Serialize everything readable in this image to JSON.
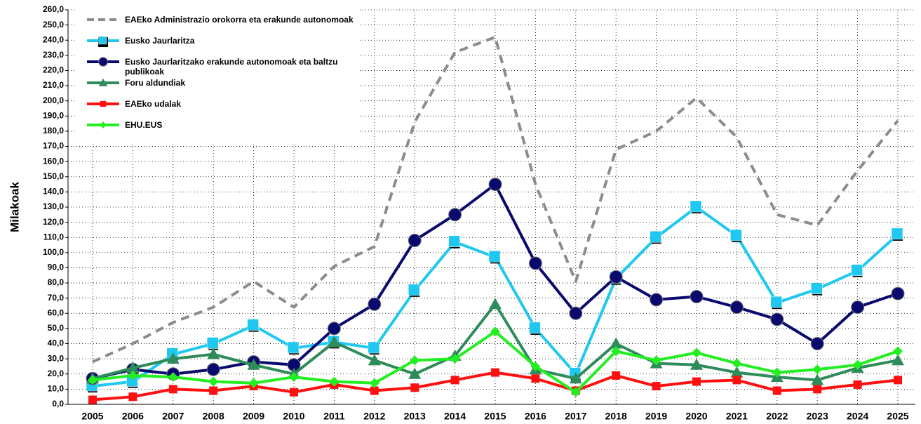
{
  "chart_data": {
    "type": "line",
    "y_label": "Milakoak",
    "categories": [
      "2005",
      "2006",
      "2007",
      "2008",
      "2009",
      "2010",
      "2011",
      "2012",
      "2013",
      "2014",
      "2015",
      "2016",
      "2017",
      "2018",
      "2019",
      "2020",
      "2021",
      "2022",
      "2023",
      "2024",
      "2025"
    ],
    "ylim": [
      0,
      260
    ],
    "yticks": [
      {
        "value": 0,
        "label": "0,0"
      },
      {
        "value": 10,
        "label": "10,0"
      },
      {
        "value": 20,
        "label": "20,0"
      },
      {
        "value": 30,
        "label": "30,0"
      },
      {
        "value": 40,
        "label": "40,0"
      },
      {
        "value": 50,
        "label": "50,0"
      },
      {
        "value": 60,
        "label": "60,0"
      },
      {
        "value": 70,
        "label": "70,0"
      },
      {
        "value": 80,
        "label": "80,0"
      },
      {
        "value": 90,
        "label": "90,0"
      },
      {
        "value": 100,
        "label": "100,0"
      },
      {
        "value": 110,
        "label": "110,0"
      },
      {
        "value": 120,
        "label": "120,0"
      },
      {
        "value": 130,
        "label": "130,0"
      },
      {
        "value": 140,
        "label": "140,0"
      },
      {
        "value": 150,
        "label": "150,0"
      },
      {
        "value": 160,
        "label": "160,0"
      },
      {
        "value": 170,
        "label": "170,0"
      },
      {
        "value": 180,
        "label": "180,0"
      },
      {
        "value": 190,
        "label": "190,0"
      },
      {
        "value": 200,
        "label": "200,0"
      },
      {
        "value": 210,
        "label": "210,0"
      },
      {
        "value": 220,
        "label": "220,0"
      },
      {
        "value": 230,
        "label": "230,0"
      },
      {
        "value": 240,
        "label": "240,0"
      },
      {
        "value": 250,
        "label": "250,0"
      },
      {
        "value": 260,
        "label": "260,0"
      }
    ],
    "grid": true,
    "legend": "upper left",
    "series": [
      {
        "name": "EAEko Administrazio orokorra eta erakunde autonomoak",
        "color": "#8c8c8c",
        "marker": "none",
        "dashed": true,
        "values": [
          28,
          40,
          54,
          64,
          81,
          64,
          91,
          104,
          186,
          232,
          242,
          145,
          81,
          168,
          180,
          202,
          176,
          125,
          118,
          154,
          187
        ]
      },
      {
        "name": "Eusko Jaurlaritza",
        "color": "#1ec8f0",
        "marker": "square",
        "dashed": false,
        "values": [
          12,
          15,
          33,
          40,
          52,
          37,
          41,
          37,
          75,
          107,
          97,
          50,
          20,
          83,
          110,
          130,
          111,
          67,
          76,
          88,
          112
        ]
      },
      {
        "name": "Eusko Jaurlaritzako erakunde autonomoak eta baltzu publikoak",
        "color": "#0a0a6e",
        "marker": "circle",
        "dashed": false,
        "values": [
          17,
          23,
          20,
          23,
          28,
          26,
          50,
          66,
          108,
          125,
          145,
          93,
          60,
          84,
          69,
          71,
          64,
          56,
          40,
          64,
          73
        ]
      },
      {
        "name": "Foru aldundiak",
        "color": "#2e8b5a",
        "marker": "triangle",
        "dashed": false,
        "values": [
          17,
          24,
          30,
          33,
          26,
          20,
          41,
          29,
          20,
          32,
          66,
          23,
          17,
          40,
          27,
          26,
          21,
          18,
          16,
          24,
          29
        ]
      },
      {
        "name": "EAEko udalak",
        "color": "#ff1010",
        "marker": "smallsquare",
        "dashed": false,
        "values": [
          3,
          5,
          10,
          9,
          12,
          8,
          13,
          9,
          11,
          16,
          21,
          17,
          9,
          19,
          12,
          15,
          16,
          9,
          10,
          13,
          16
        ]
      },
      {
        "name": "EHU.EUS",
        "color": "#22ee22",
        "marker": "diamond",
        "dashed": false,
        "values": [
          16,
          19,
          18,
          15,
          14,
          18,
          15,
          14,
          29,
          30,
          48,
          25,
          8,
          35,
          29,
          34,
          27,
          21,
          23,
          26,
          35
        ]
      }
    ]
  }
}
